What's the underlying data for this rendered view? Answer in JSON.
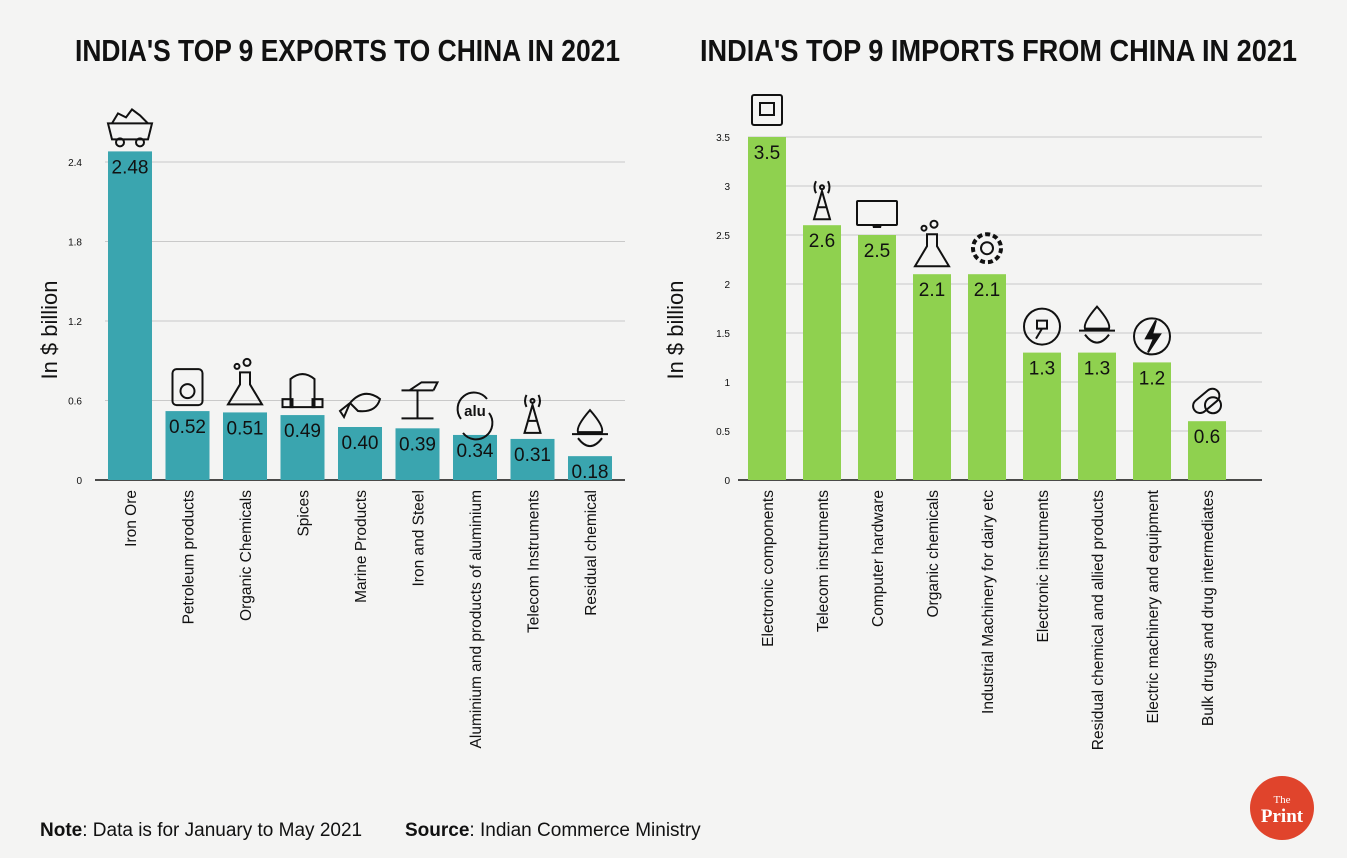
{
  "chart_data": [
    {
      "type": "bar",
      "title": "INDIA'S TOP 9 EXPORTS TO CHINA IN 2021",
      "ylabel": "In $ billion",
      "xlabel": "",
      "ylim": [
        0,
        2.4
      ],
      "yticks": [
        "0",
        "0.6",
        "1.2",
        "1.8",
        "2.4"
      ],
      "grid": true,
      "bar_color": "#3aa5af",
      "categories": [
        "Iron Ore",
        "Petroleum products",
        "Organic Chemicals",
        "Spices",
        "Marine Products",
        "Iron and Steel",
        "Aluminium and products of aluminium",
        "Telecom Instruments",
        "Residual chemical"
      ],
      "values": [
        2.48,
        0.52,
        0.51,
        0.49,
        0.4,
        0.39,
        0.34,
        0.31,
        0.18
      ],
      "value_labels": [
        "2.48",
        "0.52",
        "0.51",
        "0.49",
        "0.40",
        "0.39",
        "0.34",
        "0.31",
        "0.18"
      ],
      "icons": [
        "mine-cart-icon",
        "jerrycan-icon",
        "flask-icon",
        "spice-sack-icon",
        "fish-icon",
        "steel-beam-icon",
        "aluminium-recycle-icon",
        "telecom-tower-icon",
        "chemical-drop-icon"
      ],
      "icon_text": {
        "aluminium-recycle-icon": "alu"
      }
    },
    {
      "type": "bar",
      "title": "INDIA'S TOP 9 IMPORTS FROM CHINA IN 2021",
      "ylabel": "In $ billion",
      "xlabel": "",
      "ylim": [
        0,
        3.5
      ],
      "yticks": [
        "0",
        "0.5",
        "1",
        "1.5",
        "2",
        "2.5",
        "3",
        "3.5"
      ],
      "grid": true,
      "bar_color": "#8fd14f",
      "categories": [
        "Electronic components",
        "Telecom instruments",
        "Computer hardware",
        "Organic chemicals",
        "Industrial Machinery for dairy etc",
        "Electronic instruments",
        "Residual chemical and allied products",
        "Electric machinery and equipment",
        "Bulk drugs and drug intermediates"
      ],
      "values": [
        3.5,
        2.6,
        2.5,
        2.1,
        2.1,
        1.3,
        1.3,
        1.2,
        0.6
      ],
      "value_labels": [
        "3.5",
        "2.6",
        "2.5",
        "2.1",
        "2.1",
        "1.3",
        "1.3",
        "1.2",
        "0.6"
      ],
      "icons": [
        "microchip-icon",
        "telecom-tower-icon",
        "monitor-icon",
        "flask-icon",
        "gear-wrench-icon",
        "plug-icon",
        "chemical-drop-icon",
        "lightning-icon",
        "pills-icon"
      ]
    }
  ],
  "footer": {
    "note_label": "Note",
    "note_text": ": Data is for January to May 2021",
    "source_label": "Source",
    "source_text": ": Indian Commerce Ministry"
  },
  "logo": {
    "text_top": "The",
    "text_bottom": "Print",
    "color": "#e0442c"
  }
}
